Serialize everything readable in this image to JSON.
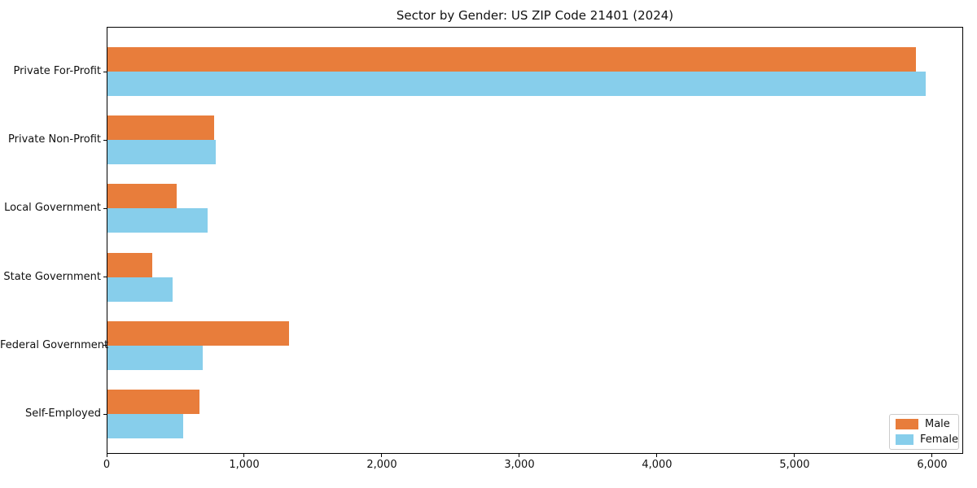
{
  "chart_data": {
    "type": "bar",
    "orientation": "horizontal",
    "title": "Sector by Gender: US ZIP Code 21401 (2024)",
    "categories": [
      "Private For-Profit",
      "Private Non-Profit",
      "Local Government",
      "State Government",
      "Federal Government",
      "Self-Employed"
    ],
    "series": [
      {
        "name": "Male",
        "color": "#e87d3b",
        "values": [
          5875,
          775,
          505,
          325,
          1320,
          670
        ]
      },
      {
        "name": "Female",
        "color": "#87ceeb",
        "values": [
          5945,
          785,
          730,
          475,
          690,
          550
        ]
      }
    ],
    "xlabel": "",
    "ylabel": "",
    "xlim": [
      0,
      6225
    ],
    "xticks": [
      0,
      1000,
      2000,
      3000,
      4000,
      5000,
      6000
    ],
    "xtick_labels": [
      "0",
      "1,000",
      "2,000",
      "3,000",
      "4,000",
      "5,000",
      "6,000"
    ],
    "grid": false,
    "legend": {
      "position": "lower right",
      "entries": [
        "Male",
        "Female"
      ]
    },
    "colors": {
      "background": "#ffffff",
      "spine": "#000000",
      "text": "#111111",
      "legend_border": "#cccccc"
    }
  }
}
